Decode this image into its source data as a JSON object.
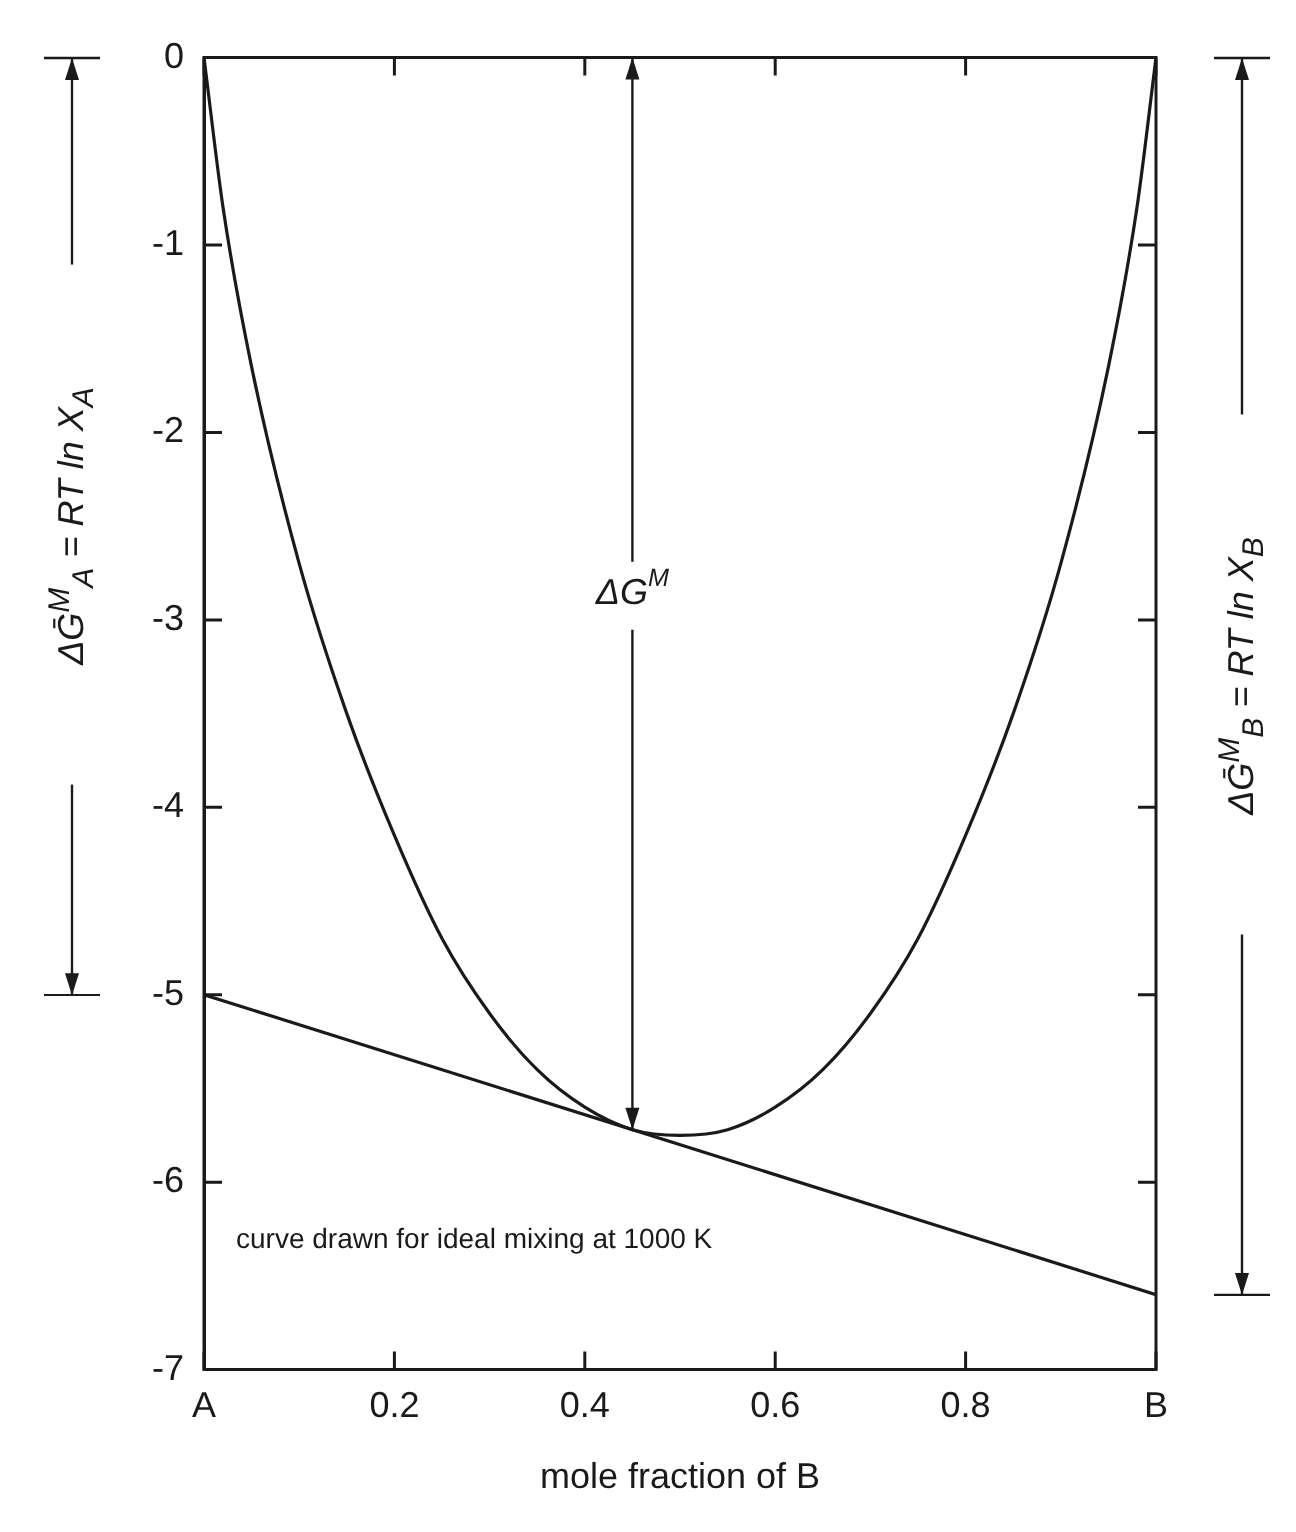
{
  "chart_data": {
    "type": "line",
    "xlabel": "mole fraction of B",
    "xlim": [
      0,
      1
    ],
    "xticks": [
      {
        "value": 0,
        "label": "A"
      },
      0.2,
      0.4,
      0.6,
      0.8,
      {
        "value": 1,
        "label": "B"
      }
    ],
    "ylim": [
      -7,
      0
    ],
    "yticks": [
      -7,
      -6,
      -5,
      -4,
      -3,
      -2,
      -1,
      0
    ],
    "grid": false,
    "legend": false,
    "marker": "none",
    "series": [
      {
        "color": "#1a1a1a",
        "x": [
          0,
          0.02,
          0.05,
          0.1,
          0.15,
          0.2,
          0.25,
          0.3,
          0.35,
          0.4,
          0.45,
          0.5,
          0.55,
          0.6,
          0.65,
          0.7,
          0.75,
          0.8,
          0.85,
          0.9,
          0.95,
          0.98,
          1
        ],
        "values": [
          0,
          -0.8,
          -1.65,
          -2.7,
          -3.5,
          -4.15,
          -4.7,
          -5.1,
          -5.4,
          -5.6,
          -5.72,
          -5.75,
          -5.72,
          -5.6,
          -5.4,
          -5.1,
          -4.7,
          -4.15,
          -3.5,
          -2.7,
          -1.65,
          -0.8,
          0
        ]
      },
      {
        "color": "#1a1a1a",
        "x": [
          0,
          1
        ],
        "values": [
          -5.0,
          -6.6
        ]
      }
    ],
    "annotations": [
      {
        "text": "ΔG$^{M}$",
        "x": 0.45,
        "y": -5.72
      },
      "ΔḠ$^{M}$$_{A}$ = RT ln X$_{A}$",
      "ΔḠ$^{M}$$_{B}$ = RT ln X$_{B}$",
      "curve drawn for ideal mixing at 1000 K"
    ]
  }
}
